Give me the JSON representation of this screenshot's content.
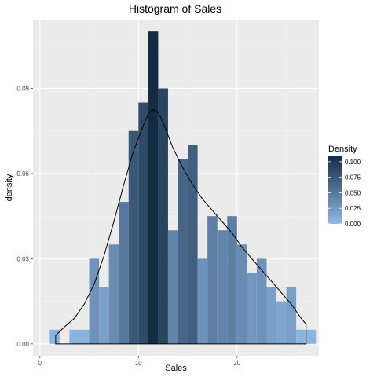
{
  "chart_data": {
    "type": "bar",
    "title": "Histogram of Sales",
    "xlabel": "Sales",
    "ylabel": "density",
    "xlim": [
      -0.7,
      28.3
    ],
    "ylim": [
      -0.0042,
      0.1142
    ],
    "x_ticks": [
      0,
      10,
      20
    ],
    "y_ticks": [
      0.0,
      0.03,
      0.06,
      0.09
    ],
    "y_tick_labels": [
      "0.00",
      "0.03",
      "0.06",
      "0.09"
    ],
    "grid": true,
    "legend_position": "right",
    "legend": {
      "title": "Density",
      "values": [
        0.1,
        0.075,
        0.05,
        0.025,
        0.0
      ],
      "labels": [
        "0.100",
        "0.075",
        "0.050",
        "0.025",
        "0.000"
      ],
      "range": [
        0.0,
        0.11
      ]
    },
    "fill_low_color": "#91B9E6",
    "fill_high_color": "#132B43",
    "bin_width": 1,
    "bins": [
      {
        "x": 1.5,
        "density": 0.005
      },
      {
        "x": 2.5,
        "density": 0.0
      },
      {
        "x": 3.5,
        "density": 0.005
      },
      {
        "x": 4.5,
        "density": 0.005
      },
      {
        "x": 5.5,
        "density": 0.03
      },
      {
        "x": 6.5,
        "density": 0.02
      },
      {
        "x": 7.5,
        "density": 0.035
      },
      {
        "x": 8.5,
        "density": 0.05
      },
      {
        "x": 9.5,
        "density": 0.075
      },
      {
        "x": 10.5,
        "density": 0.085
      },
      {
        "x": 11.5,
        "density": 0.11
      },
      {
        "x": 12.5,
        "density": 0.09
      },
      {
        "x": 13.5,
        "density": 0.04
      },
      {
        "x": 14.5,
        "density": 0.065
      },
      {
        "x": 15.5,
        "density": 0.07
      },
      {
        "x": 16.5,
        "density": 0.03
      },
      {
        "x": 17.5,
        "density": 0.045
      },
      {
        "x": 18.5,
        "density": 0.04
      },
      {
        "x": 19.5,
        "density": 0.045
      },
      {
        "x": 20.5,
        "density": 0.035
      },
      {
        "x": 21.5,
        "density": 0.025
      },
      {
        "x": 22.5,
        "density": 0.03
      },
      {
        "x": 23.5,
        "density": 0.02
      },
      {
        "x": 24.5,
        "density": 0.015
      },
      {
        "x": 25.5,
        "density": 0.02
      },
      {
        "x": 26.5,
        "density": 0.005
      },
      {
        "x": 27.5,
        "density": 0.005
      }
    ],
    "density_curve": {
      "x": [
        1.6,
        2.5,
        3.5,
        4.5,
        5.5,
        6.5,
        7.5,
        8.5,
        9.5,
        10.5,
        11.0,
        11.5,
        12.0,
        12.5,
        13.5,
        14.5,
        15.5,
        16.5,
        17.5,
        18.5,
        19.5,
        20.5,
        21.5,
        22.5,
        23.5,
        24.5,
        25.5,
        26.5,
        27.0
      ],
      "y": [
        0.003,
        0.006,
        0.009,
        0.014,
        0.021,
        0.031,
        0.043,
        0.056,
        0.068,
        0.077,
        0.081,
        0.0825,
        0.0815,
        0.078,
        0.069,
        0.062,
        0.056,
        0.051,
        0.047,
        0.043,
        0.039,
        0.034,
        0.03,
        0.026,
        0.022,
        0.018,
        0.014,
        0.009,
        0.007
      ]
    }
  }
}
